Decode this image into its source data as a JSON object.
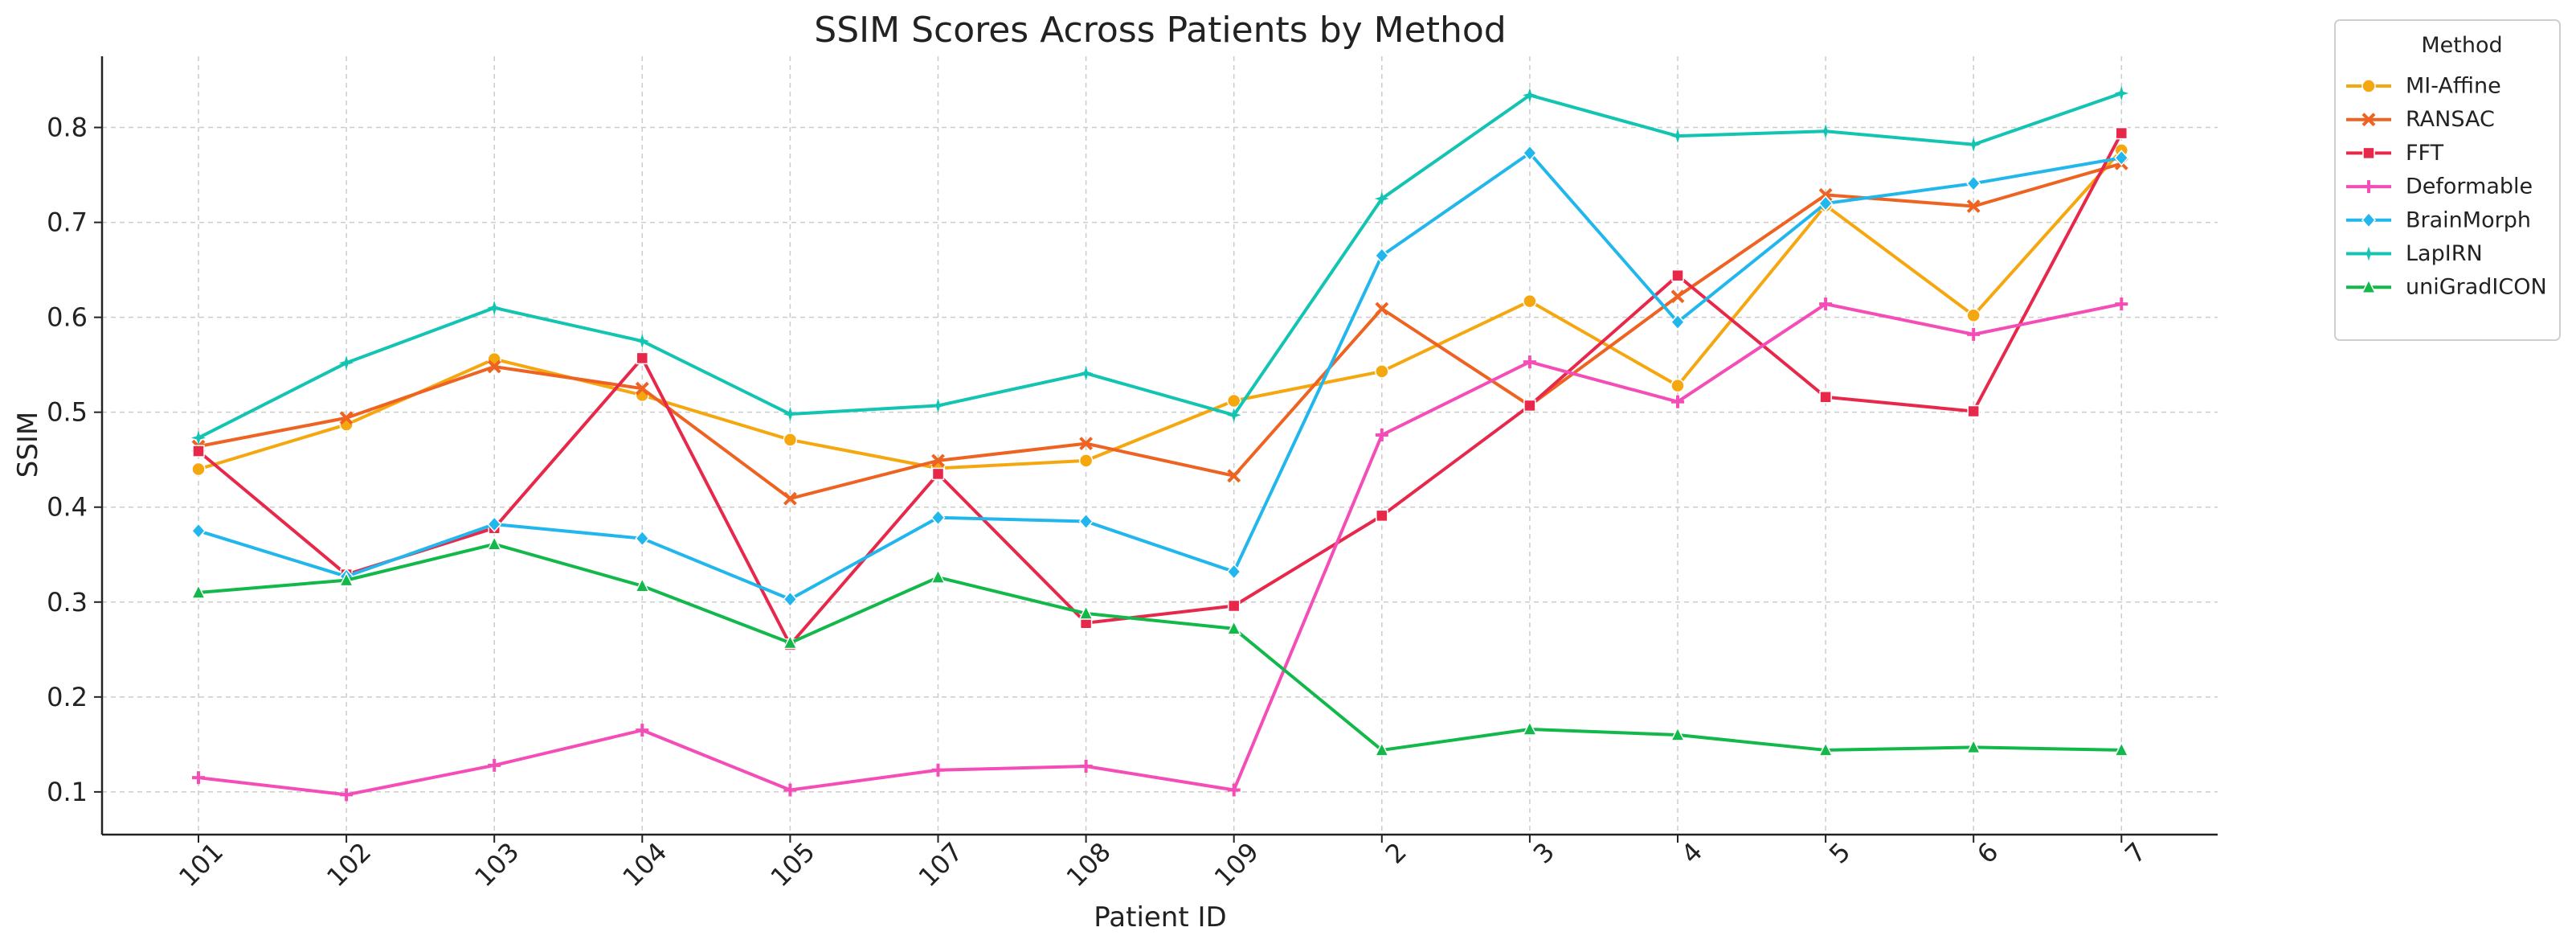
{
  "chart_data": {
    "type": "line",
    "title": "SSIM Scores Across Patients by Method",
    "xlabel": "Patient ID",
    "ylabel": "SSIM",
    "categories": [
      "101",
      "102",
      "103",
      "104",
      "105",
      "107",
      "108",
      "109",
      "2",
      "3",
      "4",
      "5",
      "6",
      "7"
    ],
    "ylim": [
      0.055,
      0.875
    ],
    "yticks": [
      "0.1",
      "0.2",
      "0.3",
      "0.4",
      "0.5",
      "0.6",
      "0.7",
      "0.8"
    ],
    "grid": true,
    "legend": {
      "title": "Method",
      "position": "top-right, outside plot"
    },
    "series": [
      {
        "name": "MI-Affine",
        "color": "#f5a70f",
        "marker": "circle",
        "values": [
          0.44,
          0.487,
          0.556,
          0.518,
          0.471,
          0.441,
          0.449,
          0.512,
          0.543,
          0.617,
          0.528,
          0.718,
          0.602,
          0.776
        ]
      },
      {
        "name": "RANSAC",
        "color": "#ee6321",
        "marker": "x",
        "values": [
          0.464,
          0.494,
          0.548,
          0.525,
          0.409,
          0.449,
          0.467,
          0.433,
          0.609,
          0.507,
          0.622,
          0.729,
          0.717,
          0.762
        ]
      },
      {
        "name": "FFT",
        "color": "#e8284a",
        "marker": "square",
        "values": [
          0.459,
          0.329,
          0.378,
          0.557,
          0.255,
          0.435,
          0.278,
          0.296,
          0.391,
          0.507,
          0.644,
          0.516,
          0.501,
          0.794
        ]
      },
      {
        "name": "Deformable",
        "color": "#f54db7",
        "marker": "plus",
        "values": [
          0.115,
          0.097,
          0.128,
          0.165,
          0.102,
          0.123,
          0.127,
          0.102,
          0.476,
          0.553,
          0.511,
          0.614,
          0.582,
          0.614
        ]
      },
      {
        "name": "BrainMorph",
        "color": "#22b7ec",
        "marker": "diamond",
        "values": [
          0.375,
          0.327,
          0.382,
          0.367,
          0.303,
          0.389,
          0.385,
          0.332,
          0.665,
          0.773,
          0.595,
          0.72,
          0.741,
          0.768
        ]
      },
      {
        "name": "LapIRN",
        "color": "#12c4b1",
        "marker": "star",
        "values": [
          0.473,
          0.552,
          0.61,
          0.575,
          0.498,
          0.507,
          0.541,
          0.497,
          0.725,
          0.834,
          0.791,
          0.796,
          0.782,
          0.836
        ]
      },
      {
        "name": "uniGradICON",
        "color": "#12b84a",
        "marker": "triangle",
        "values": [
          0.31,
          0.323,
          0.361,
          0.317,
          0.257,
          0.326,
          0.288,
          0.272,
          0.144,
          0.166,
          0.16,
          0.144,
          0.147,
          0.144
        ]
      }
    ]
  }
}
